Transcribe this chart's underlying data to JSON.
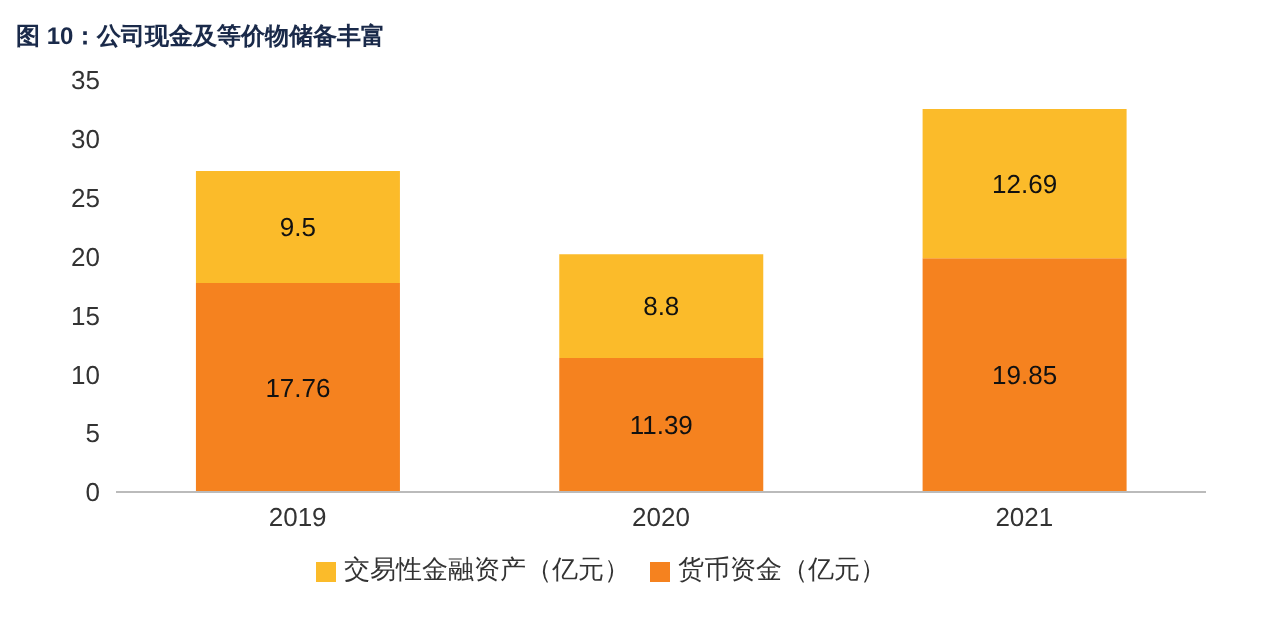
{
  "chart_data": {
    "type": "bar",
    "title": "图 10：公司现金及等价物储备丰富",
    "categories": [
      "2019",
      "2020",
      "2021"
    ],
    "stacked": true,
    "series": [
      {
        "name": "货币资金（亿元）",
        "color": "#f5821f",
        "values": [
          17.76,
          11.39,
          19.85
        ]
      },
      {
        "name": "交易性金融资产（亿元）",
        "color": "#fbbb2a",
        "values": [
          9.5,
          8.8,
          12.69
        ]
      }
    ],
    "ylim": [
      0,
      35
    ],
    "yticks": [
      0,
      5,
      10,
      15,
      20,
      25,
      30,
      35
    ],
    "data_labels": true,
    "legend": "bottom",
    "grid": false
  }
}
